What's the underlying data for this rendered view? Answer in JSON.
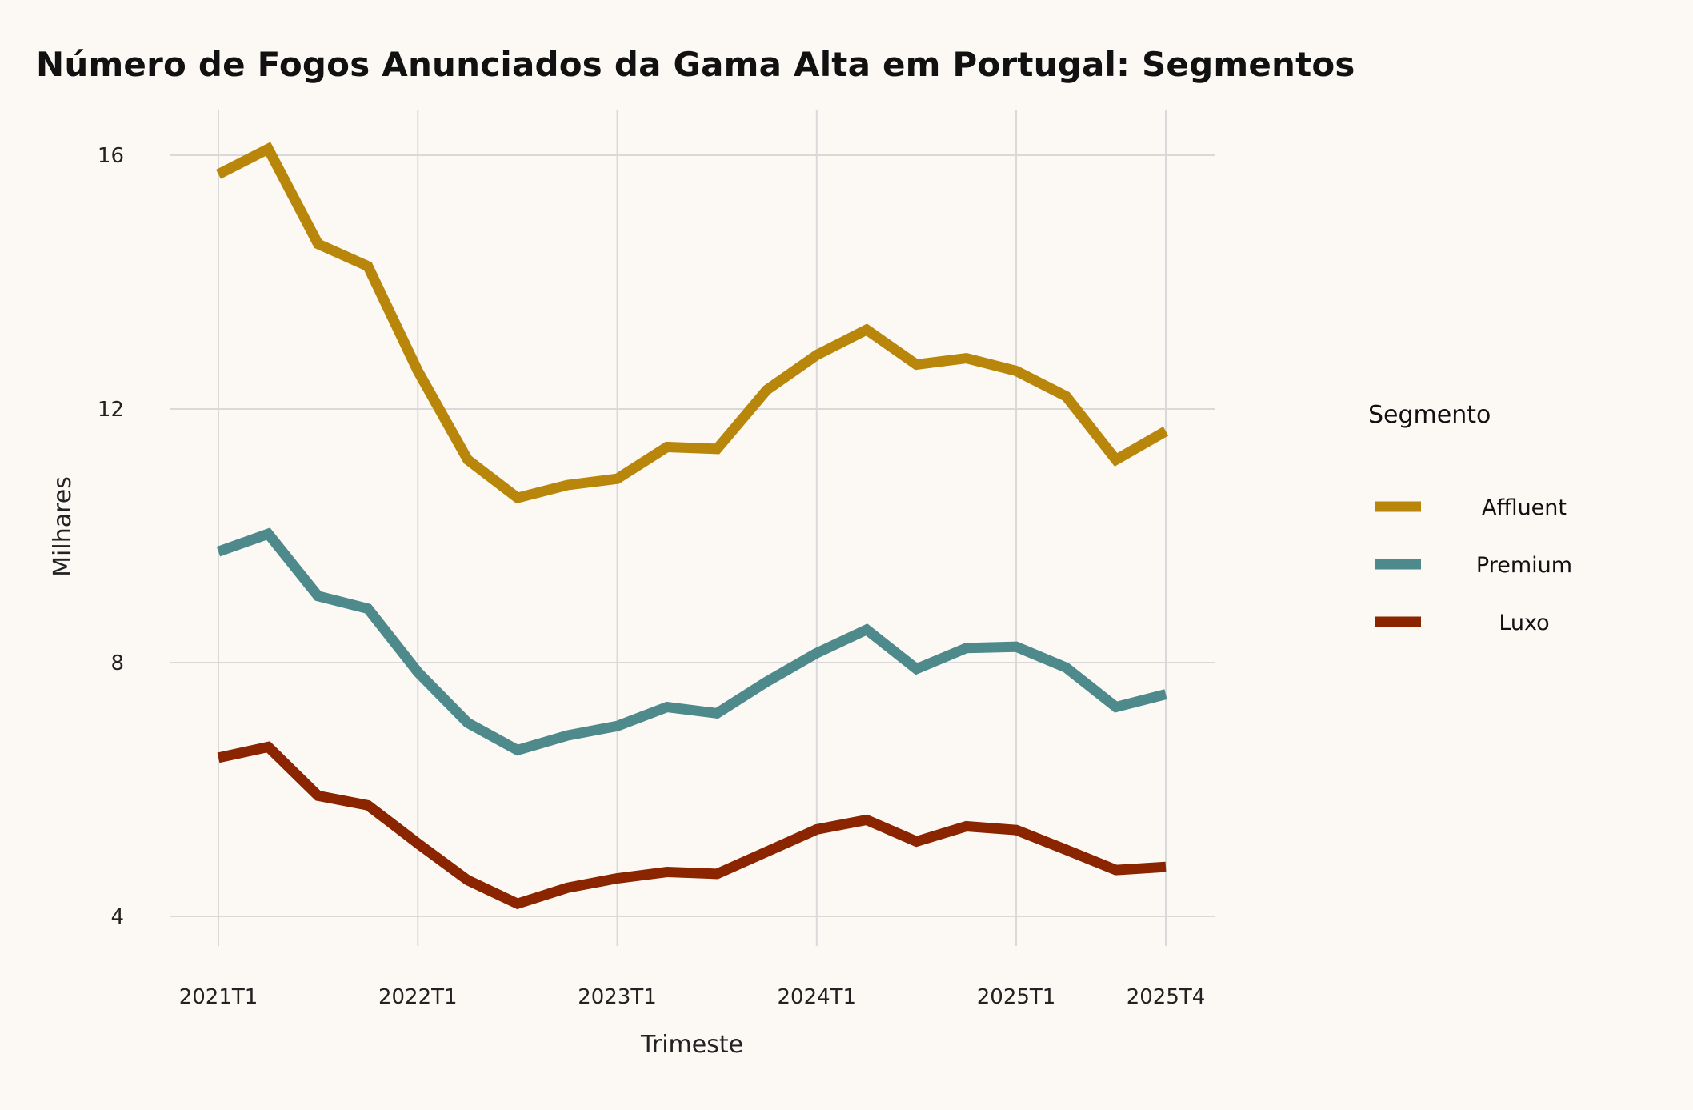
{
  "chart_data": {
    "type": "line",
    "title": "Número de Fogos Anunciados da Gama Alta em Portugal: Segmentos",
    "xlabel": "Trimeste",
    "ylabel": "Milhares",
    "ylim": [
      4,
      16
    ],
    "yticks": [
      4,
      8,
      12,
      16
    ],
    "xticks": [
      {
        "label": "2021T1",
        "index": 0
      },
      {
        "label": "2022T1",
        "index": 4
      },
      {
        "label": "2023T1",
        "index": 8
      },
      {
        "label": "2024T1",
        "index": 12
      },
      {
        "label": "2025T1",
        "index": 16
      },
      {
        "label": "2025T4",
        "index": 19
      }
    ],
    "categories": [
      "2021T1",
      "2021T2",
      "2021T3",
      "2021T4",
      "2022T1",
      "2022T2",
      "2022T3",
      "2022T4",
      "2023T1",
      "2023T2",
      "2023T3",
      "2023T4",
      "2024T1",
      "2024T2",
      "2024T3",
      "2024T4",
      "2025T1",
      "2025T2",
      "2025T3",
      "2025T4"
    ],
    "grid": true,
    "legend": {
      "title": "Segmento",
      "position": "right"
    },
    "series": [
      {
        "name": "Affluent",
        "color": "#b8860b",
        "values": [
          15.7,
          16.1,
          14.6,
          14.25,
          12.6,
          11.2,
          10.6,
          10.8,
          10.9,
          11.4,
          11.37,
          12.3,
          12.85,
          13.25,
          12.7,
          12.8,
          12.6,
          12.2,
          11.2,
          11.65
        ]
      },
      {
        "name": "Premium",
        "color": "#4e8a8b",
        "values": [
          9.75,
          10.03,
          9.05,
          8.85,
          7.85,
          7.05,
          6.62,
          6.85,
          7.0,
          7.3,
          7.2,
          7.7,
          8.15,
          8.52,
          7.9,
          8.23,
          8.25,
          7.92,
          7.3,
          7.5
        ]
      },
      {
        "name": "Luxo",
        "color": "#8b2500",
        "values": [
          6.5,
          6.67,
          5.9,
          5.75,
          5.15,
          4.57,
          4.2,
          4.45,
          4.6,
          4.7,
          4.67,
          5.02,
          5.37,
          5.52,
          5.18,
          5.42,
          5.36,
          5.05,
          4.73,
          4.78
        ]
      }
    ]
  }
}
